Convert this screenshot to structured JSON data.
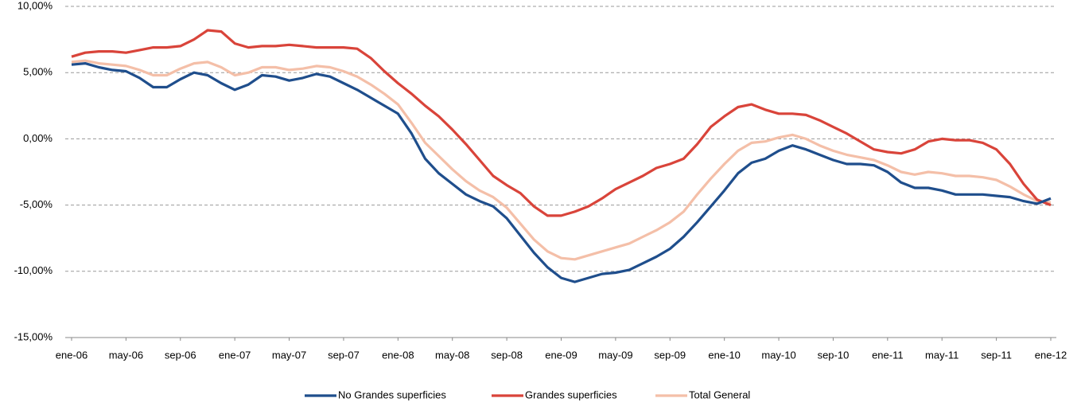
{
  "chart_data": {
    "type": "line",
    "categories": [
      "ene-06",
      null,
      null,
      null,
      "may-06",
      null,
      null,
      null,
      "sep-06",
      null,
      null,
      null,
      "ene-07",
      null,
      null,
      null,
      "may-07",
      null,
      null,
      null,
      "sep-07",
      null,
      null,
      null,
      "ene-08",
      null,
      null,
      null,
      "may-08",
      null,
      null,
      null,
      "sep-08",
      null,
      null,
      null,
      "ene-09",
      null,
      null,
      null,
      "may-09",
      null,
      null,
      null,
      "sep-09",
      null,
      null,
      null,
      "ene-10",
      null,
      null,
      null,
      "may-10",
      null,
      null,
      null,
      "sep-10",
      null,
      null,
      null,
      "ene-11",
      null,
      null,
      null,
      "may-11",
      null,
      null,
      null,
      "sep-11",
      null,
      null,
      null,
      "ene-12"
    ],
    "series": [
      {
        "name": "No Grandes superficies",
        "color": "#1f4e8c",
        "values": [
          5.6,
          5.7,
          5.4,
          5.2,
          5.1,
          4.6,
          3.9,
          3.9,
          4.5,
          5.0,
          4.8,
          4.2,
          3.7,
          4.1,
          4.8,
          4.7,
          4.4,
          4.6,
          4.9,
          4.7,
          4.2,
          3.7,
          3.1,
          2.5,
          1.9,
          0.4,
          -1.5,
          -2.6,
          -3.4,
          -4.2,
          -4.7,
          -5.1,
          -6.0,
          -7.3,
          -8.6,
          -9.7,
          -10.5,
          -10.8,
          -10.5,
          -10.2,
          -10.1,
          -9.9,
          -9.4,
          -8.9,
          -8.3,
          -7.4,
          -6.3,
          -5.1,
          -3.9,
          -2.6,
          -1.8,
          -1.5,
          -0.9,
          -0.5,
          -0.8,
          -1.2,
          -1.6,
          -1.9,
          -1.9,
          -2.0,
          -2.5,
          -3.3,
          -3.7,
          -3.7,
          -3.9,
          -4.2,
          -4.2,
          -4.2,
          -4.3,
          -4.4,
          -4.7,
          -4.9,
          -4.5
        ]
      },
      {
        "name": "Grandes superficies",
        "color": "#d9443a",
        "values": [
          6.2,
          6.5,
          6.6,
          6.6,
          6.5,
          6.7,
          6.9,
          6.9,
          7.0,
          7.5,
          8.2,
          8.1,
          7.2,
          6.9,
          7.0,
          7.0,
          7.1,
          7.0,
          6.9,
          6.9,
          6.9,
          6.8,
          6.1,
          5.1,
          4.2,
          3.4,
          2.5,
          1.7,
          0.7,
          -0.4,
          -1.6,
          -2.8,
          -3.5,
          -4.1,
          -5.1,
          -5.8,
          -5.8,
          -5.5,
          -5.1,
          -4.5,
          -3.8,
          -3.3,
          -2.8,
          -2.2,
          -1.9,
          -1.5,
          -0.4,
          0.9,
          1.7,
          2.4,
          2.6,
          2.2,
          1.9,
          1.9,
          1.8,
          1.4,
          0.9,
          0.4,
          -0.2,
          -0.8,
          -1.0,
          -1.1,
          -0.8,
          -0.2,
          0.0,
          -0.1,
          -0.1,
          -0.3,
          -0.8,
          -1.9,
          -3.4,
          -4.6,
          -5.0
        ]
      },
      {
        "name": "Total General",
        "color": "#f4bfa8",
        "values": [
          5.8,
          5.9,
          5.7,
          5.6,
          5.5,
          5.2,
          4.8,
          4.8,
          5.3,
          5.7,
          5.8,
          5.4,
          4.8,
          5.0,
          5.4,
          5.4,
          5.2,
          5.3,
          5.5,
          5.4,
          5.1,
          4.7,
          4.1,
          3.4,
          2.6,
          1.2,
          -0.3,
          -1.3,
          -2.3,
          -3.2,
          -3.9,
          -4.4,
          -5.2,
          -6.4,
          -7.6,
          -8.5,
          -9.0,
          -9.1,
          -8.8,
          -8.5,
          -8.2,
          -7.9,
          -7.4,
          -6.9,
          -6.3,
          -5.5,
          -4.2,
          -3.0,
          -1.9,
          -0.9,
          -0.3,
          -0.2,
          0.1,
          0.3,
          0.0,
          -0.5,
          -0.9,
          -1.2,
          -1.4,
          -1.6,
          -2.0,
          -2.5,
          -2.7,
          -2.5,
          -2.6,
          -2.8,
          -2.8,
          -2.9,
          -3.1,
          -3.6,
          -4.2,
          -4.7,
          -4.8
        ]
      }
    ],
    "ylim": [
      -15,
      10
    ],
    "yticks": [
      {
        "value": -15,
        "label": "-15,00%"
      },
      {
        "value": -10,
        "label": "-10,00%"
      },
      {
        "value": -5,
        "label": "-5,00%"
      },
      {
        "value": 0,
        "label": "0,00%"
      },
      {
        "value": 5,
        "label": "5,00%"
      },
      {
        "value": 10,
        "label": "10,00%"
      }
    ],
    "grid": true,
    "legend": "bottom"
  }
}
